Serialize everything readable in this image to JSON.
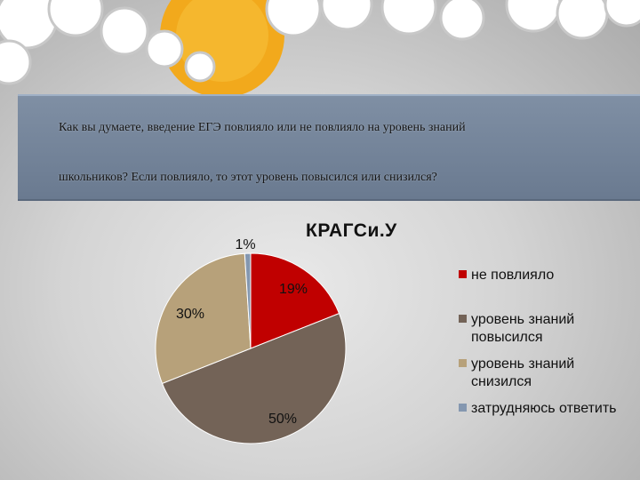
{
  "question": {
    "line1": "Как вы думаете, введение ЕГЭ повлияло или не повлияло на уровень знаний",
    "line2": "школьников? Если повлияло, то этот уровень повысился или снизился?"
  },
  "chart_data": {
    "type": "pie",
    "title": "КРАГСи.У",
    "categories": [
      "не повлияло",
      "уровень знаний повысился",
      "уровень знаний снизился",
      "затрудняюсь ответить"
    ],
    "values": [
      19,
      50,
      30,
      1
    ],
    "data_labels": [
      "19%",
      "50%",
      "30%",
      "1%"
    ],
    "colors": [
      "#c00000",
      "#736357",
      "#b7a17a",
      "#8497b0"
    ],
    "legend_position": "right"
  }
}
